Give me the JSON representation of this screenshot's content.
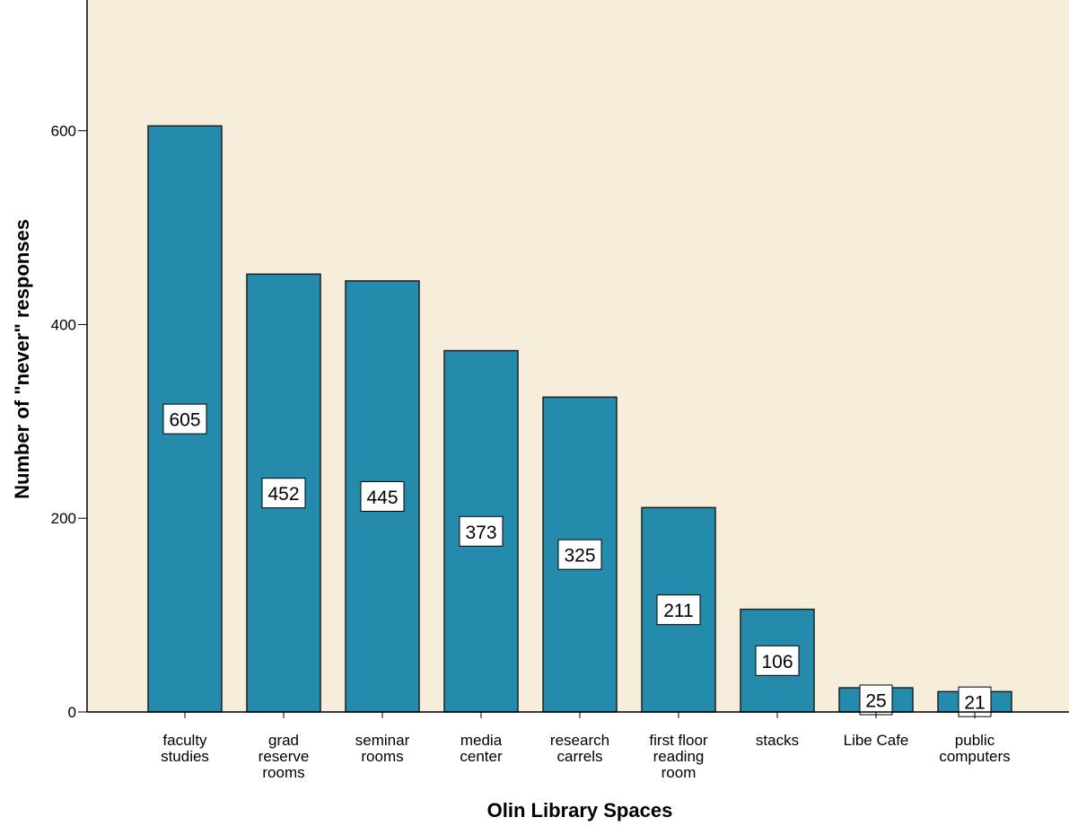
{
  "chart_data": {
    "type": "bar",
    "title": "",
    "xlabel": "Olin Library Spaces",
    "ylabel": "Number of \"never\" responses",
    "categories": [
      [
        "faculty",
        "studies"
      ],
      [
        "grad",
        "reserve",
        "rooms"
      ],
      [
        "seminar",
        "rooms"
      ],
      [
        "media",
        "center"
      ],
      [
        "research",
        "carrels"
      ],
      [
        "first floor",
        "reading",
        "room"
      ],
      [
        "stacks"
      ],
      [
        "Libe Cafe"
      ],
      [
        "public",
        "computers"
      ]
    ],
    "values": [
      605,
      452,
      445,
      373,
      325,
      211,
      106,
      25,
      21
    ],
    "data_labels": [
      "605",
      "452",
      "445",
      "373",
      "325",
      "211",
      "106",
      "25",
      "21"
    ],
    "ylim": [
      0,
      735
    ],
    "yticks": [
      0,
      200,
      400,
      600
    ],
    "ytick_labels": [
      "0",
      "200",
      "400",
      "600"
    ],
    "grid": false,
    "legend": "none",
    "colors": {
      "plot_background": "#f6eedb",
      "bar_fill": "#248bad",
      "bar_stroke": "#1f1f1f",
      "axis": "#000000",
      "label_box": "#ffffff"
    }
  }
}
